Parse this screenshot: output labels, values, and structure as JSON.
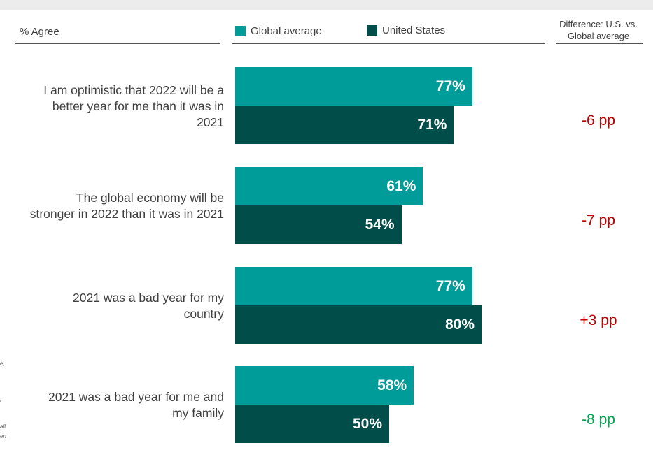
{
  "header": {
    "measure_label": "% Agree",
    "diff_header_line1": "Difference: U.S. vs.",
    "diff_header_line2": "Global average"
  },
  "legend": [
    {
      "name": "Global average",
      "color": "#009c9a"
    },
    {
      "name": "United States",
      "color": "#004d4a"
    }
  ],
  "colors": {
    "positive": "#c00000",
    "negative": "#00a651"
  },
  "footnotes": [
    "e,",
    "i",
    "all",
    "en"
  ],
  "chart_data": {
    "type": "bar",
    "orientation": "horizontal",
    "xlim": [
      0,
      100
    ],
    "categories": [
      {
        "line1": "I am optimistic that 2022 will be a",
        "line2": "better year for me than it was in",
        "line3": "2021"
      },
      {
        "line1": "The global economy will be",
        "line2": "stronger in 2022 than it was in 2021",
        "line3": ""
      },
      {
        "line1": "2021 was a bad year for my",
        "line2": "country",
        "line3": ""
      },
      {
        "line1": "2021 was a bad year for me and",
        "line2": "my family",
        "line3": ""
      }
    ],
    "series": [
      {
        "name": "Global average",
        "values": [
          77,
          61,
          77,
          58
        ],
        "labels": [
          "77%",
          "61%",
          "77%",
          "58%"
        ]
      },
      {
        "name": "United States",
        "values": [
          71,
          54,
          80,
          50
        ],
        "labels": [
          "71%",
          "54%",
          "80%",
          "50%"
        ]
      }
    ],
    "differences": [
      {
        "text": "-6 pp",
        "sign": "positive"
      },
      {
        "text": "-7 pp",
        "sign": "positive"
      },
      {
        "text": "+3 pp",
        "sign": "positive"
      },
      {
        "text": "-8 pp",
        "sign": "negative"
      }
    ]
  }
}
